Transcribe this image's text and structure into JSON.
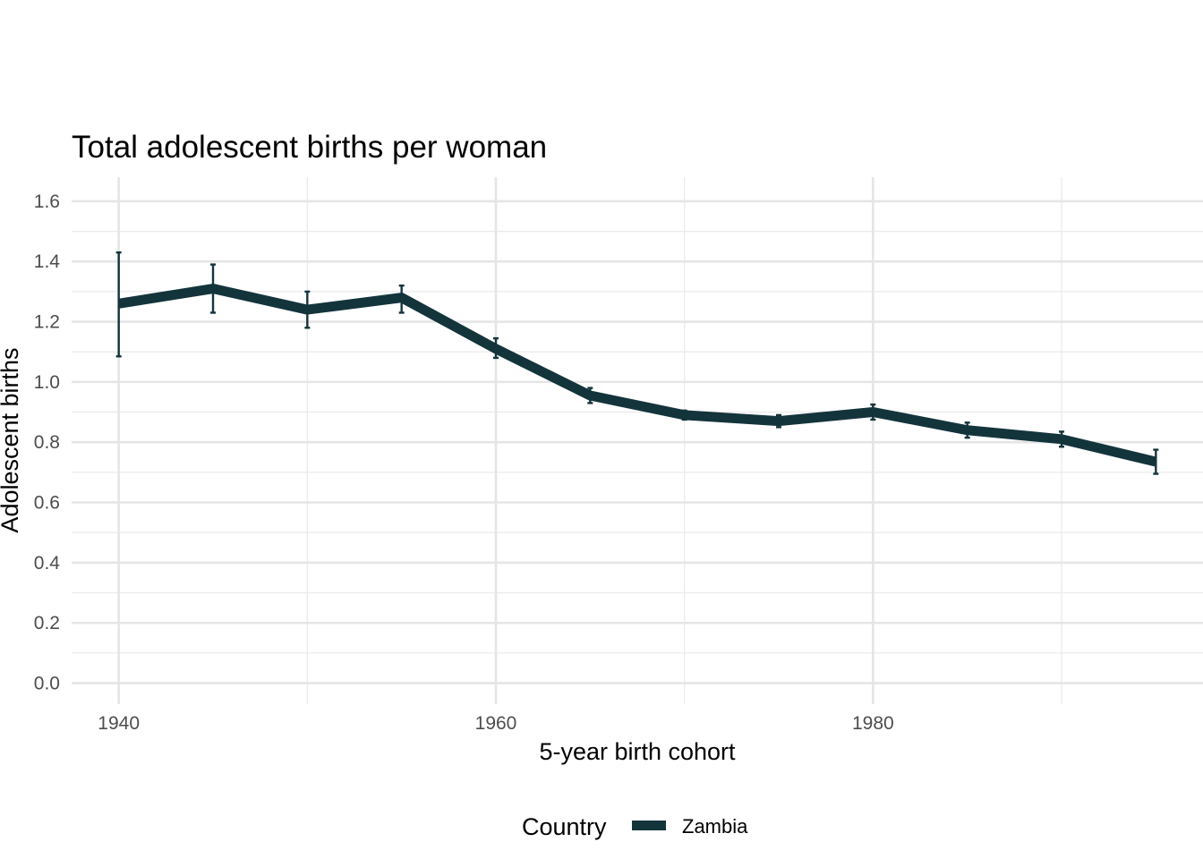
{
  "chart_data": {
    "type": "line",
    "title": "Total adolescent births per woman",
    "xlabel": "5-year birth cohort",
    "ylabel": "Adolescent births",
    "xlim": [
      1937.5,
      1997.5
    ],
    "ylim": [
      -0.07,
      1.68
    ],
    "x_ticks": [
      1940,
      1960,
      1980
    ],
    "x_tick_labels": [
      "1940",
      "1960",
      "1980"
    ],
    "x_minor_ticks": [
      1950,
      1970,
      1990
    ],
    "y_ticks": [
      0.0,
      0.2,
      0.4,
      0.6,
      0.8,
      1.0,
      1.2,
      1.4,
      1.6
    ],
    "y_tick_labels": [
      "0.0",
      "0.2",
      "0.4",
      "0.6",
      "0.8",
      "1.0",
      "1.2",
      "1.4",
      "1.6"
    ],
    "y_minor_ticks": [
      0.1,
      0.3,
      0.5,
      0.7,
      0.9,
      1.1,
      1.3,
      1.5
    ],
    "grid": true,
    "legend_position": "bottom",
    "legend_title": "Country",
    "series": [
      {
        "name": "Zambia",
        "color": "#14343c",
        "x": [
          1940,
          1945,
          1950,
          1955,
          1960,
          1965,
          1970,
          1975,
          1980,
          1985,
          1990,
          1995
        ],
        "values": [
          1.26,
          1.31,
          1.24,
          1.28,
          1.11,
          0.955,
          0.89,
          0.87,
          0.9,
          0.84,
          0.81,
          0.735
        ],
        "lower": [
          1.085,
          1.23,
          1.18,
          1.23,
          1.08,
          0.93,
          0.875,
          0.85,
          0.875,
          0.815,
          0.785,
          0.695
        ],
        "upper": [
          1.43,
          1.39,
          1.3,
          1.32,
          1.145,
          0.98,
          0.905,
          0.89,
          0.925,
          0.865,
          0.835,
          0.775
        ]
      }
    ]
  }
}
